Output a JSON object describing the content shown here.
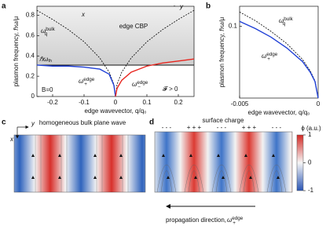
{
  "chart_data": [
    {
      "type": "line",
      "panel_label": "a",
      "xlabel": "edge wavevector, q/q₀",
      "ylabel": "plasmon frequency, ℏω/μ",
      "xlim": [
        -0.25,
        0.25
      ],
      "xticks": [
        -0.2,
        -0.1,
        0,
        0.1,
        0.2
      ],
      "ylim": [
        0,
        0.89
      ],
      "yticks": [
        0,
        0.2,
        0.4,
        0.6,
        0.8
      ],
      "threshold": {
        "value": 0.31,
        "label": {
          "base": "ℏω",
          "sub": "th"
        }
      },
      "series": [
        {
          "label": {
            "base": "ω",
            "sub": "q",
            "sup": "bulk"
          },
          "color": "#000000",
          "dash": true,
          "x": [
            -0.25,
            -0.2,
            -0.15,
            -0.1,
            -0.05,
            -0.02,
            -0.005,
            0,
            0.005,
            0.02,
            0.05,
            0.1,
            0.15,
            0.2,
            0.25
          ],
          "values": [
            0.85,
            0.76,
            0.66,
            0.54,
            0.38,
            0.24,
            0.12,
            0,
            0.12,
            0.24,
            0.38,
            0.54,
            0.66,
            0.76,
            0.85
          ]
        },
        {
          "label": {
            "base": "ω",
            "sub": "+",
            "sup": "edge"
          },
          "color": "#1f3fd6",
          "dash": false,
          "x": [
            -0.25,
            -0.2,
            -0.15,
            -0.1,
            -0.05,
            -0.02,
            -0.005,
            0
          ],
          "values": [
            0.31,
            0.3,
            0.3,
            0.29,
            0.27,
            0.22,
            0.11,
            0
          ]
        },
        {
          "label": {
            "base": "ω",
            "sub": "−",
            "sup": "edge"
          },
          "color": "#e8261f",
          "dash": false,
          "x": [
            0,
            0.005,
            0.02,
            0.05,
            0.1,
            0.15,
            0.2,
            0.25
          ],
          "values": [
            0,
            0.08,
            0.16,
            0.24,
            0.3,
            0.33,
            0.35,
            0.37
          ]
        }
      ],
      "annotations": [
        "B=0",
        "𝓕 > 0"
      ],
      "inset": {
        "x": "x",
        "y": "y",
        "label": "edge CBP"
      }
    },
    {
      "type": "line",
      "panel_label": "b",
      "xlabel": "edge wavevector, q/q₀",
      "ylabel": "plasmon frequency, ℏω/μ",
      "xlim": [
        -0.005,
        0
      ],
      "xticks": [
        -0.005,
        0
      ],
      "ylim": [
        0,
        0.128
      ],
      "yticks": [
        0.1
      ],
      "series": [
        {
          "label": {
            "base": "ω",
            "sub": "q",
            "sup": "bulk"
          },
          "color": "#000000",
          "dash": true,
          "x": [
            -0.005,
            -0.004,
            -0.003,
            -0.002,
            -0.001,
            -0.0005,
            -0.0002,
            0
          ],
          "values": [
            0.12,
            0.108,
            0.093,
            0.076,
            0.054,
            0.038,
            0.024,
            0
          ]
        },
        {
          "label": {
            "base": "ω",
            "sub": "+",
            "sup": "edge"
          },
          "color": "#1f3fd6",
          "dash": false,
          "x": [
            -0.005,
            -0.004,
            -0.003,
            -0.002,
            -0.001,
            -0.0005,
            -0.0002,
            0
          ],
          "values": [
            0.107,
            0.097,
            0.085,
            0.07,
            0.051,
            0.036,
            0.023,
            0
          ]
        }
      ]
    }
  ],
  "panel_c": {
    "panel_label": "c",
    "title": "homogeneous bulk plane wave",
    "x": "x",
    "y": "y"
  },
  "panel_d": {
    "panel_label": "d",
    "title": "surface charge",
    "charges": [
      "- - -",
      "+ + +",
      "- - -",
      "+ + +",
      "- - -"
    ],
    "colorbar": {
      "label": "ϕ (a.u.)",
      "lim": [
        -1,
        1
      ],
      "ticks": [
        1,
        0,
        -1
      ]
    },
    "footer": {
      "text": "propagation direction, ",
      "label": {
        "base": "ω",
        "sub": "+",
        "sup": "edge"
      }
    }
  }
}
